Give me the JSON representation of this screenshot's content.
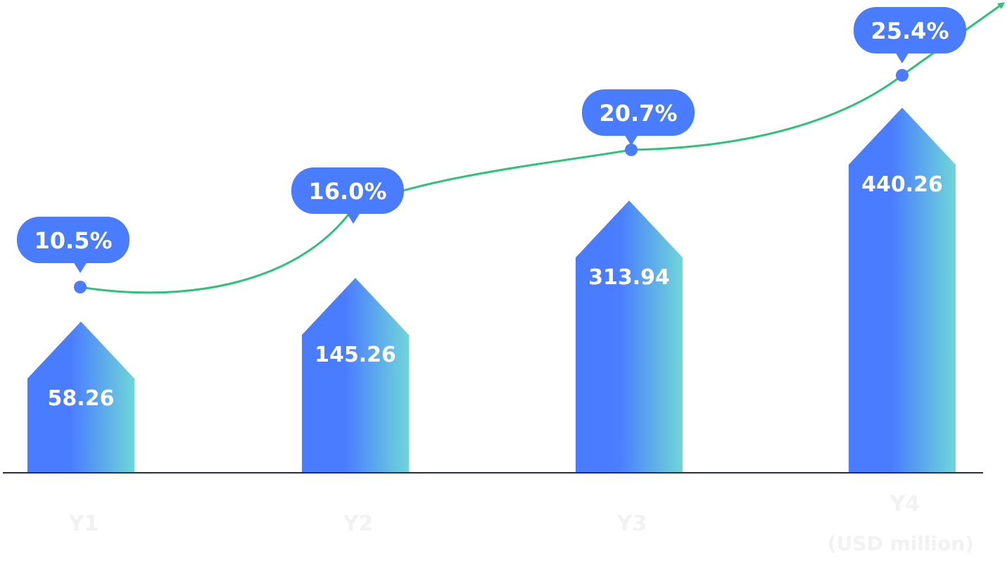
{
  "chart_data": {
    "type": "bar",
    "categories": [
      "Y1",
      "Y2",
      "Y3",
      "Y4"
    ],
    "series": [
      {
        "values": [
          58.26,
          145.26,
          313.94,
          440.26
        ]
      },
      {
        "values": [
          10.5,
          16.0,
          20.7,
          25.4
        ]
      }
    ],
    "value_labels": [
      "58.26",
      "145.26",
      "313.94",
      "440.26"
    ],
    "percent_labels": [
      "10.5%",
      "16.0%",
      "20.7%",
      "25.4%"
    ],
    "unit_label": "(USD million)",
    "grid": false,
    "colors": {
      "bar_start": "#4a7cff",
      "bar_end": "#6fd6d8",
      "line": "#2cc27a",
      "marker": "#4a7cff",
      "bubble": "#4a7cff",
      "axis": "#2b2f3a"
    }
  }
}
